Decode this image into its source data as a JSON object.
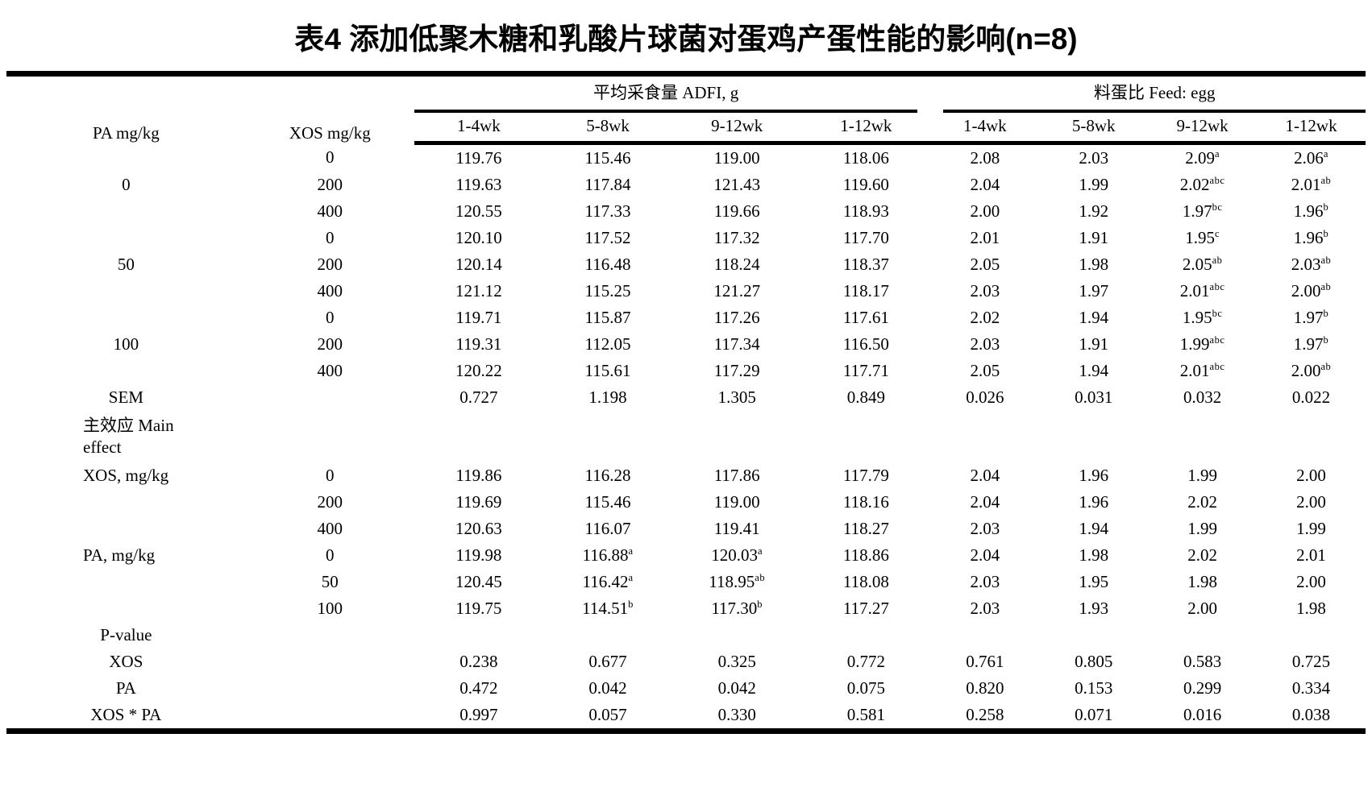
{
  "title": "表4 添加低聚木糖和乳酸片球菌对蛋鸡产蛋性能的影响(n=8)",
  "colors": {
    "text": "#000000",
    "background": "#ffffff",
    "rule": "#000000"
  },
  "table": {
    "corner_headers": {
      "pa": "PA mg/kg",
      "xos": "XOS mg/kg"
    },
    "group_headers": [
      {
        "label": "平均采食量 ADFI, g",
        "span": 4
      },
      {
        "label": "料蛋比 Feed: egg",
        "span": 4
      }
    ],
    "sub_headers": [
      "1-4wk",
      "5-8wk",
      "9-12wk",
      "1-12wk",
      "1-4wk",
      "5-8wk",
      "9-12wk",
      "1-12wk"
    ],
    "rows": [
      {
        "label": "",
        "sub": "0",
        "values": [
          "119.76",
          "115.46",
          "119.00",
          "118.06",
          "2.08",
          "2.03",
          "2.09^a",
          "2.06^a"
        ]
      },
      {
        "label": "0",
        "sub": "200",
        "values": [
          "119.63",
          "117.84",
          "121.43",
          "119.60",
          "2.04",
          "1.99",
          "2.02^abc",
          "2.01^ab"
        ]
      },
      {
        "label": "",
        "sub": "400",
        "values": [
          "120.55",
          "117.33",
          "119.66",
          "118.93",
          "2.00",
          "1.92",
          "1.97^bc",
          "1.96^b"
        ]
      },
      {
        "label": "",
        "sub": "0",
        "values": [
          "120.10",
          "117.52",
          "117.32",
          "117.70",
          "2.01",
          "1.91",
          "1.95^c",
          "1.96^b"
        ]
      },
      {
        "label": "50",
        "sub": "200",
        "values": [
          "120.14",
          "116.48",
          "118.24",
          "118.37",
          "2.05",
          "1.98",
          "2.05^ab",
          "2.03^ab"
        ]
      },
      {
        "label": "",
        "sub": "400",
        "values": [
          "121.12",
          "115.25",
          "121.27",
          "118.17",
          "2.03",
          "1.97",
          "2.01^abc",
          "2.00^ab"
        ]
      },
      {
        "label": "",
        "sub": "0",
        "values": [
          "119.71",
          "115.87",
          "117.26",
          "117.61",
          "2.02",
          "1.94",
          "1.95^bc",
          "1.97^b"
        ]
      },
      {
        "label": "100",
        "sub": "200",
        "values": [
          "119.31",
          "112.05",
          "117.34",
          "116.50",
          "2.03",
          "1.91",
          "1.99^abc",
          "1.97^b"
        ]
      },
      {
        "label": "",
        "sub": "400",
        "values": [
          "120.22",
          "115.61",
          "117.29",
          "117.71",
          "2.05",
          "1.94",
          "2.01^abc",
          "2.00^ab"
        ]
      },
      {
        "label": "SEM",
        "sub": "",
        "values": [
          "0.727",
          "1.198",
          "1.305",
          "0.849",
          "0.026",
          "0.031",
          "0.032",
          "0.022"
        ]
      },
      {
        "label": "主效应 Main\neffect",
        "align": "left",
        "tall": true,
        "sub": "",
        "values": []
      },
      {
        "label": "XOS, mg/kg",
        "align": "left",
        "sub": "0",
        "values": [
          "119.86",
          "116.28",
          "117.86",
          "117.79",
          "2.04",
          "1.96",
          "1.99",
          "2.00"
        ]
      },
      {
        "label": "",
        "sub": "200",
        "values": [
          "119.69",
          "115.46",
          "119.00",
          "118.16",
          "2.04",
          "1.96",
          "2.02",
          "2.00"
        ]
      },
      {
        "label": "",
        "sub": "400",
        "values": [
          "120.63",
          "116.07",
          "119.41",
          "118.27",
          "2.03",
          "1.94",
          "1.99",
          "1.99"
        ]
      },
      {
        "label": "PA, mg/kg",
        "align": "left",
        "sub": "0",
        "values": [
          "119.98",
          "116.88^a",
          "120.03^a",
          "118.86",
          "2.04",
          "1.98",
          "2.02",
          "2.01"
        ]
      },
      {
        "label": "",
        "sub": "50",
        "values": [
          "120.45",
          "116.42^a",
          "118.95^ab",
          "118.08",
          "2.03",
          "1.95",
          "1.98",
          "2.00"
        ]
      },
      {
        "label": "",
        "sub": "100",
        "values": [
          "119.75",
          "114.51^b",
          "117.30^b",
          "117.27",
          "2.03",
          "1.93",
          "2.00",
          "1.98"
        ]
      },
      {
        "label": "P-value",
        "sub": "",
        "values": []
      },
      {
        "label": "XOS",
        "sub": "",
        "values": [
          "0.238",
          "0.677",
          "0.325",
          "0.772",
          "0.761",
          "0.805",
          "0.583",
          "0.725"
        ]
      },
      {
        "label": "PA",
        "sub": "",
        "values": [
          "0.472",
          "0.042",
          "0.042",
          "0.075",
          "0.820",
          "0.153",
          "0.299",
          "0.334"
        ]
      },
      {
        "label": "XOS * PA",
        "sub": "",
        "values": [
          "0.997",
          "0.057",
          "0.330",
          "0.581",
          "0.258",
          "0.071",
          "0.016",
          "0.038"
        ]
      }
    ]
  }
}
